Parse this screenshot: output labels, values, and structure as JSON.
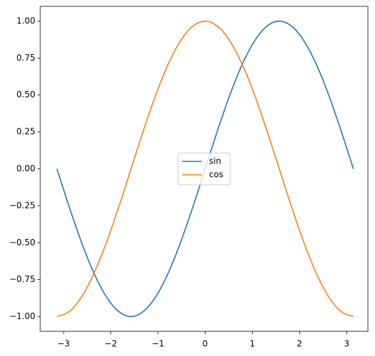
{
  "chart_data": {
    "type": "line",
    "x": [
      -3.1416,
      -2.8798,
      -2.618,
      -2.3562,
      -2.0944,
      -1.8326,
      -1.5708,
      -1.309,
      -1.0472,
      -0.7854,
      -0.5236,
      -0.2618,
      0,
      0.2618,
      0.5236,
      0.7854,
      1.0472,
      1.309,
      1.5708,
      1.8326,
      2.0944,
      2.3562,
      2.618,
      2.8798,
      3.1416
    ],
    "series": [
      {
        "name": "sin",
        "color": "#1f77b4",
        "values": [
          0,
          -0.2588,
          -0.5,
          -0.7071,
          -0.866,
          -0.9659,
          -1,
          -0.9659,
          -0.866,
          -0.7071,
          -0.5,
          -0.2588,
          0,
          0.2588,
          0.5,
          0.7071,
          0.866,
          0.9659,
          1,
          0.9659,
          0.866,
          0.7071,
          0.5,
          0.2588,
          0
        ]
      },
      {
        "name": "cos",
        "color": "#ff7f0e",
        "values": [
          -1,
          -0.9659,
          -0.866,
          -0.7071,
          -0.5,
          -0.2588,
          0,
          0.2588,
          0.5,
          0.7071,
          0.866,
          0.9659,
          1,
          0.9659,
          0.866,
          0.7071,
          0.5,
          0.2588,
          0,
          -0.2588,
          -0.5,
          -0.7071,
          -0.866,
          -0.9659,
          -1
        ]
      }
    ],
    "xlim": [
      -3.495,
      3.45
    ],
    "ylim": [
      -1.1,
      1.1
    ],
    "xticks": [
      {
        "value": -3,
        "label": "−3"
      },
      {
        "value": -2,
        "label": "−2"
      },
      {
        "value": -1,
        "label": "−1"
      },
      0,
      1,
      2,
      3
    ],
    "yticks": [
      {
        "value": -1,
        "label": "−1.00"
      },
      {
        "value": -0.75,
        "label": "−0.75"
      },
      {
        "value": -0.5,
        "label": "−0.50"
      },
      {
        "value": -0.25,
        "label": "−0.25"
      },
      {
        "value": 0,
        "label": "0.00"
      },
      {
        "value": 0.25,
        "label": "0.25"
      },
      {
        "value": 0.5,
        "label": "0.50"
      },
      {
        "value": 0.75,
        "label": "0.75"
      },
      {
        "value": 1,
        "label": "1.00"
      }
    ],
    "legend": "center",
    "grid": false
  }
}
